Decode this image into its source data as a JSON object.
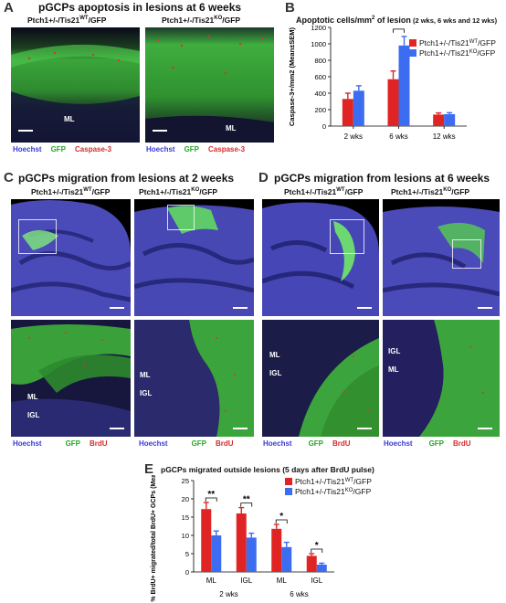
{
  "panel_a": {
    "letter": "A",
    "title": "pGCPs apoptosis in lesions at 6 weeks",
    "left_genotype": "Ptch1+/-/Tis21",
    "left_genotype_sup": "WT",
    "left_genotype_end": "/GFP",
    "right_genotype": "Ptch1+/-/Tis21",
    "right_genotype_sup": "KO",
    "right_genotype_end": "/GFP",
    "left_ml": "ML",
    "right_ml": "ML",
    "legend_left": {
      "hoechst": "Hoechst",
      "gfp": "GFP",
      "marker": "Caspase-3"
    },
    "legend_right": {
      "hoechst": "Hoechst",
      "gfp": "GFP",
      "marker": "Caspase-3"
    }
  },
  "panel_b": {
    "letter": "B",
    "title": "Apoptotic cells/mm",
    "title_sup": "2",
    "title_rest": " of lesion",
    "title_small": " (2 wks, 6 wks and 12 wks)"
  },
  "panel_c": {
    "letter": "C",
    "title": "pGCPs migration from lesions at 2 weeks",
    "left_genotype": "Ptch1+/-/Tis21",
    "left_genotype_sup": "WT",
    "left_genotype_end": "/GFP",
    "right_genotype": "Ptch1+/-/Tis21",
    "right_genotype_sup": "KO",
    "right_genotype_end": "/GFP",
    "left_ml": "ML",
    "left_igl": "IGL",
    "right_ml": "ML",
    "right_igl": "IGL",
    "legend_left": {
      "hoechst": "Hoechst",
      "gfp": "GFP",
      "marker": "BrdU"
    },
    "legend_right": {
      "hoechst": "Hoechst",
      "gfp": "GFP",
      "marker": "BrdU"
    }
  },
  "panel_d": {
    "letter": "D",
    "title": "pGCPs migration from lesions at 6 weeks",
    "left_genotype": "Ptch1+/-/Tis21",
    "left_genotype_sup": "WT",
    "left_genotype_end": "/GFP",
    "right_genotype": "Ptch1+/-/Tis21",
    "right_genotype_sup": "KO",
    "right_genotype_end": "/GFP",
    "left_ml": "ML",
    "left_igl": "IGL",
    "right_igl": "IGL",
    "right_ml": "ML",
    "legend_left": {
      "hoechst": "Hoechst",
      "gfp": "GFP",
      "marker": "BrdU"
    },
    "legend_right": {
      "hoechst": "Hoechst",
      "gfp": "GFP",
      "marker": "BrdU"
    }
  },
  "panel_e": {
    "letter": "E",
    "title": "pGCPs migrated outside lesions (5 days after BrdU pulse)"
  },
  "colors": {
    "wt": "#e02424",
    "ko": "#3c6cf0",
    "hoechst": "#3a3ad8",
    "gfp": "#22a822",
    "marker": "#d42a2a"
  },
  "chart_data": [
    {
      "type": "bar",
      "panel": "B",
      "categories": [
        "2 wks",
        "6 wks",
        "12 wks"
      ],
      "series": [
        {
          "name": "Ptch1+/-/Tis21WT/GFP",
          "label_base": "Ptch1+/-/Tis21",
          "label_sup": "WT",
          "label_end": "/GFP",
          "color": "#e02424",
          "values": [
            330,
            570,
            140
          ],
          "errors": [
            70,
            100,
            20
          ]
        },
        {
          "name": "Ptch1+/-/Tis21KO/GFP",
          "label_base": "Ptch1+/-/Tis21",
          "label_sup": "KO",
          "label_end": "/GFP",
          "color": "#3c6cf0",
          "values": [
            430,
            980,
            145
          ],
          "errors": [
            60,
            110,
            18
          ]
        }
      ],
      "ylabel": "Caspase-3+/mm2 (Mean±SEM)",
      "ylim": [
        0,
        1200
      ],
      "yticks": [
        0,
        200,
        400,
        600,
        800,
        1000,
        1200
      ],
      "significance": [
        {
          "category": "6 wks",
          "mark": "*"
        }
      ],
      "legend": "top-right"
    },
    {
      "type": "bar",
      "panel": "E",
      "categories": [
        "ML",
        "IGL",
        "ML",
        "IGL"
      ],
      "groups": [
        {
          "label": "2 wks",
          "categories": [
            0,
            1
          ]
        },
        {
          "label": "6 wks",
          "categories": [
            2,
            3
          ]
        }
      ],
      "series": [
        {
          "name": "Ptch1+/-/Tis21WT/GFP",
          "label_base": "Ptch1+/-/Tis21",
          "label_sup": "WT",
          "label_end": "/GFP",
          "color": "#e02424",
          "values": [
            17.2,
            16.0,
            11.8,
            4.4
          ],
          "errors": [
            1.8,
            1.6,
            1.2,
            0.6
          ]
        },
        {
          "name": "Ptch1+/-/Tis21KO/GFP",
          "label_base": "Ptch1+/-/Tis21",
          "label_sup": "KO",
          "label_end": "/GFP",
          "color": "#3c6cf0",
          "values": [
            10.0,
            9.4,
            6.8,
            2.0
          ],
          "errors": [
            1.2,
            1.2,
            1.3,
            0.4
          ]
        }
      ],
      "ylabel": "% BrdU+ migrated/total BrdU+ GCPs (Mean±SEM)",
      "ylim": [
        0,
        25
      ],
      "yticks": [
        0,
        5,
        10,
        15,
        20,
        25
      ],
      "significance": [
        "**",
        "**",
        "*",
        "*"
      ],
      "legend": "top-right"
    }
  ]
}
